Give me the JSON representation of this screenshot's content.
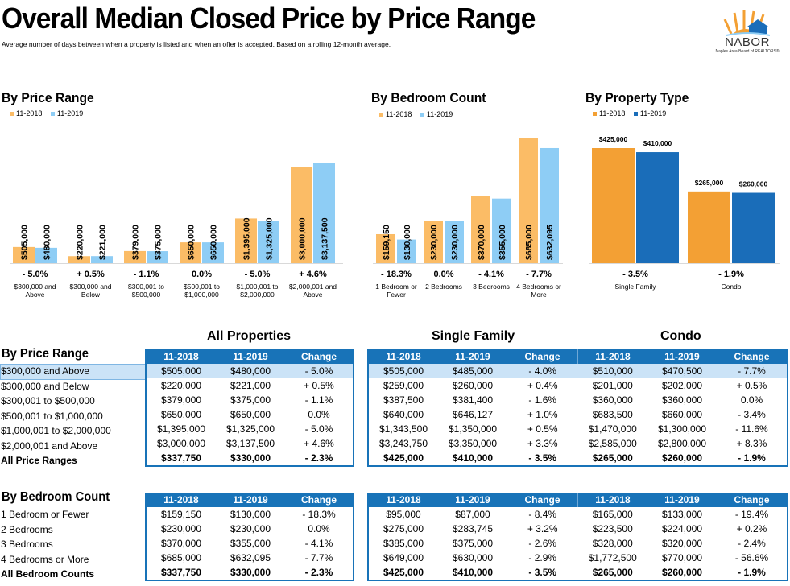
{
  "page": {
    "title": "Overall Median Closed Price by Price Range",
    "subtitle": "Average number of days between when a property is listed and when an offer is accepted.  Based on a rolling 12-month average.",
    "logo_name": "NABOR",
    "logo_tagline": "Naples Area Board of REALTORS®"
  },
  "colors": {
    "y2018_light": "#fbbc66",
    "y2019_light": "#8ecdf5",
    "y2018_dark": "#f3a034",
    "y2019_dark": "#1a6db9",
    "table_blue": "#1873b8",
    "highlight": "#cbe3f7"
  },
  "chart_data": [
    {
      "type": "bar",
      "title": "By Price Range",
      "legend": [
        "11-2018",
        "11-2019"
      ],
      "categories": [
        "$300,000 and Above",
        "$300,000 and Below",
        "$300,001 to $500,000",
        "$500,001 to $1,000,000",
        "$1,000,001 to $2,000,000",
        "$2,000,001 and Above"
      ],
      "series": [
        {
          "name": "11-2018",
          "values": [
            505000,
            220000,
            379000,
            650000,
            1395000,
            3000000
          ]
        },
        {
          "name": "11-2019",
          "values": [
            480000,
            221000,
            375000,
            650000,
            1325000,
            3137500
          ]
        }
      ],
      "value_labels_2018": [
        "$505,000",
        "$220,000",
        "$379,000",
        "$650,000",
        "$1,395,000",
        "$3,000,000"
      ],
      "value_labels_2019": [
        "$480,000",
        "$221,000",
        "$375,000",
        "$650,000",
        "$1,325,000",
        "$3,137,500"
      ],
      "changes": [
        "- 5.0%",
        "+ 0.5%",
        "- 1.1%",
        "0.0%",
        "- 5.0%",
        "+ 4.6%"
      ],
      "cat_lines": [
        [
          "$300,000 and",
          "Above"
        ],
        [
          "$300,000 and",
          "Below"
        ],
        [
          "$300,001 to",
          "$500,000"
        ],
        [
          "$500,001 to",
          "$1,000,000"
        ],
        [
          "$1,000,001 to",
          "$2,000,000"
        ],
        [
          "$2,000,001 and",
          "Above"
        ]
      ]
    },
    {
      "type": "bar",
      "title": "By Bedroom Count",
      "legend": [
        "11-2018",
        "11-2019"
      ],
      "categories": [
        "1 Bedroom or Fewer",
        "2 Bedrooms",
        "3 Bedrooms",
        "4 Bedrooms or More"
      ],
      "series": [
        {
          "name": "11-2018",
          "values": [
            159150,
            230000,
            370000,
            685000
          ]
        },
        {
          "name": "11-2019",
          "values": [
            130000,
            230000,
            355000,
            632095
          ]
        }
      ],
      "value_labels_2018": [
        "$159,150",
        "$230,000",
        "$370,000",
        "$685,000"
      ],
      "value_labels_2019": [
        "$130,000",
        "$230,000",
        "$355,000",
        "$632,095"
      ],
      "changes": [
        "- 18.3%",
        "0.0%",
        "- 4.1%",
        "- 7.7%"
      ],
      "cat_lines": [
        [
          "1 Bedroom or",
          "Fewer"
        ],
        [
          "2 Bedrooms",
          ""
        ],
        [
          "3 Bedrooms",
          ""
        ],
        [
          "4 Bedrooms or",
          "More"
        ]
      ]
    },
    {
      "type": "bar",
      "title": "By Property Type",
      "legend": [
        "11-2018",
        "11-2019"
      ],
      "categories": [
        "Single Family",
        "Condo"
      ],
      "series": [
        {
          "name": "11-2018",
          "values": [
            425000,
            265000
          ]
        },
        {
          "name": "11-2019",
          "values": [
            410000,
            260000
          ]
        }
      ],
      "value_labels_2018": [
        "$425,000",
        "$265,000"
      ],
      "value_labels_2019": [
        "$410,000",
        "$260,000"
      ],
      "changes": [
        "- 3.5%",
        "- 1.9%"
      ],
      "cat_lines": [
        [
          "Single Family",
          ""
        ],
        [
          "Condo",
          ""
        ]
      ]
    }
  ],
  "tables": {
    "group_titles": [
      "All Properties",
      "Single Family",
      "Condo"
    ],
    "columns": [
      "11-2018",
      "11-2019",
      "Change"
    ],
    "price": {
      "title": "By Price Range",
      "labels": [
        "$300,000 and Above",
        "$300,000 and Below",
        "$300,001 to $500,000",
        "$500,001 to $1,000,000",
        "$1,000,001 to $2,000,000",
        "$2,000,001 and Above",
        "All Price Ranges"
      ],
      "all": [
        [
          "$505,000",
          "$480,000",
          "- 5.0%"
        ],
        [
          "$220,000",
          "$221,000",
          "+ 0.5%"
        ],
        [
          "$379,000",
          "$375,000",
          "- 1.1%"
        ],
        [
          "$650,000",
          "$650,000",
          "0.0%"
        ],
        [
          "$1,395,000",
          "$1,325,000",
          "- 5.0%"
        ],
        [
          "$3,000,000",
          "$3,137,500",
          "+ 4.6%"
        ],
        [
          "$337,750",
          "$330,000",
          "- 2.3%"
        ]
      ],
      "sf": [
        [
          "$505,000",
          "$485,000",
          "- 4.0%"
        ],
        [
          "$259,000",
          "$260,000",
          "+ 0.4%"
        ],
        [
          "$387,500",
          "$381,400",
          "- 1.6%"
        ],
        [
          "$640,000",
          "$646,127",
          "+ 1.0%"
        ],
        [
          "$1,343,500",
          "$1,350,000",
          "+ 0.5%"
        ],
        [
          "$3,243,750",
          "$3,350,000",
          "+ 3.3%"
        ],
        [
          "$425,000",
          "$410,000",
          "- 3.5%"
        ]
      ],
      "condo": [
        [
          "$510,000",
          "$470,500",
          "- 7.7%"
        ],
        [
          "$201,000",
          "$202,000",
          "+ 0.5%"
        ],
        [
          "$360,000",
          "$360,000",
          "0.0%"
        ],
        [
          "$683,500",
          "$660,000",
          "- 3.4%"
        ],
        [
          "$1,470,000",
          "$1,300,000",
          "- 11.6%"
        ],
        [
          "$2,585,000",
          "$2,800,000",
          "+ 8.3%"
        ],
        [
          "$265,000",
          "$260,000",
          "- 1.9%"
        ]
      ]
    },
    "bed": {
      "title": "By Bedroom Count",
      "labels": [
        "1 Bedroom or Fewer",
        "2 Bedrooms",
        "3 Bedrooms",
        "4 Bedrooms or More",
        "All Bedroom Counts"
      ],
      "all": [
        [
          "$159,150",
          "$130,000",
          "- 18.3%"
        ],
        [
          "$230,000",
          "$230,000",
          "0.0%"
        ],
        [
          "$370,000",
          "$355,000",
          "- 4.1%"
        ],
        [
          "$685,000",
          "$632,095",
          "- 7.7%"
        ],
        [
          "$337,750",
          "$330,000",
          "- 2.3%"
        ]
      ],
      "sf": [
        [
          "$95,000",
          "$87,000",
          "- 8.4%"
        ],
        [
          "$275,000",
          "$283,745",
          "+ 3.2%"
        ],
        [
          "$385,000",
          "$375,000",
          "- 2.6%"
        ],
        [
          "$649,000",
          "$630,000",
          "- 2.9%"
        ],
        [
          "$425,000",
          "$410,000",
          "- 3.5%"
        ]
      ],
      "condo": [
        [
          "$165,000",
          "$133,000",
          "- 19.4%"
        ],
        [
          "$223,500",
          "$224,000",
          "+ 0.2%"
        ],
        [
          "$328,000",
          "$320,000",
          "- 2.4%"
        ],
        [
          "$1,772,500",
          "$770,000",
          "- 56.6%"
        ],
        [
          "$265,000",
          "$260,000",
          "- 1.9%"
        ]
      ]
    }
  }
}
